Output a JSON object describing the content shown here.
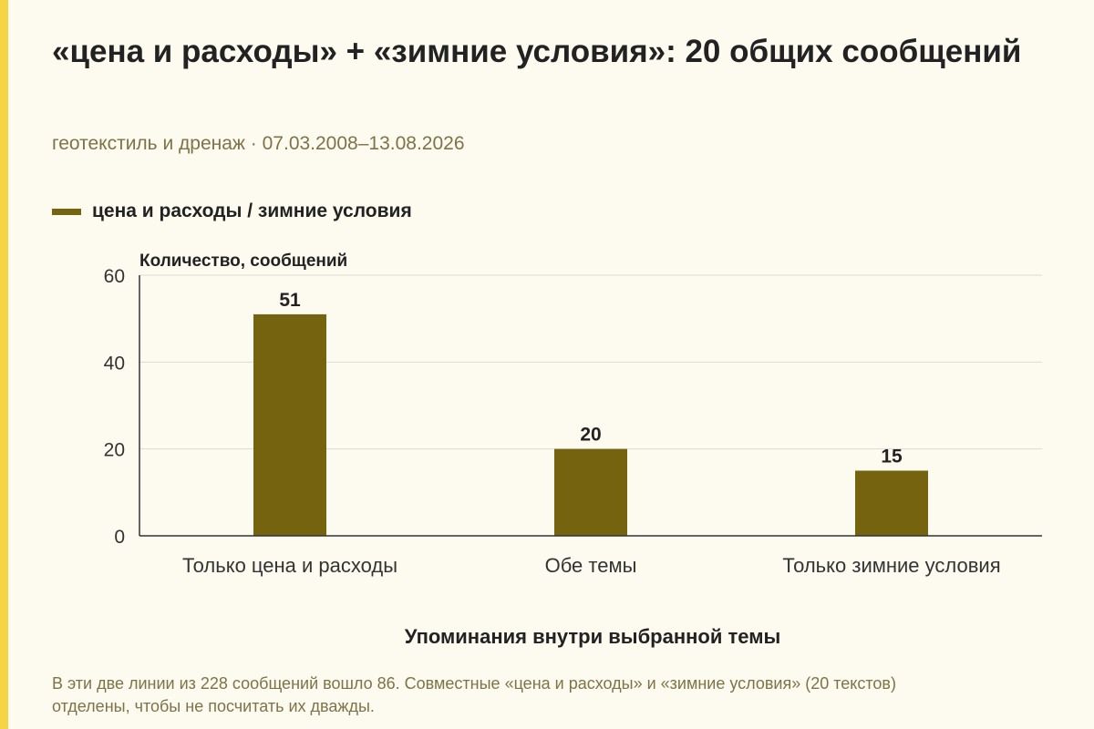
{
  "header": {
    "title": "«цена и расходы» + «зимние условия»: 20 общих сообщений",
    "subtitle": "геотекстиль и дренаж · 07.03.2008–13.08.2026"
  },
  "legend": {
    "label": "цена и расходы / зимние условия"
  },
  "footnote": "В эти две линии из 228 сообщений вошло 86. Совместные «цена и расходы» и «зимние условия» (20 текстов) отделены, чтобы не посчитать их дважды.",
  "colors": {
    "accent": "#f6d443",
    "bar": "#766310",
    "grid": "#dcdcd2",
    "axis": "#333333"
  },
  "chart_data": {
    "type": "bar",
    "title": "«цена и расходы» + «зимние условия»: 20 общих сообщений",
    "subtitle": "геотекстиль и дренаж · 07.03.2008–13.08.2026",
    "xlabel": "Упоминания внутри выбранной темы",
    "ylabel": "Количество, сообщений",
    "categories": [
      "Только цена и расходы",
      "Обе темы",
      "Только зимние условия"
    ],
    "series": [
      {
        "name": "цена и расходы / зимние условия",
        "values": [
          51,
          20,
          15
        ]
      }
    ],
    "ylim": [
      0,
      60
    ],
    "yticks": [
      0,
      20,
      40,
      60
    ],
    "grid": true,
    "legend_position": "top-left"
  }
}
